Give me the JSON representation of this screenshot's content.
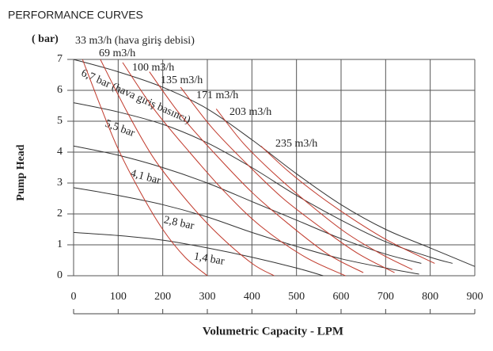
{
  "chart_data": {
    "type": "line",
    "title": "PERFORMANCE CURVES",
    "y_unit": "( bar)",
    "y_label": "Pump Head",
    "x_label": "Volumetric Capacity - LPM",
    "xlim": [
      0,
      900
    ],
    "xticks": [
      0,
      100,
      200,
      300,
      400,
      500,
      600,
      700,
      800,
      900
    ],
    "ylim": [
      0,
      7
    ],
    "yticks": [
      0,
      1,
      2,
      3,
      4,
      5,
      6,
      7
    ],
    "grid": true,
    "series": [
      {
        "name": "6,7 bar (hava giriş basıncı)",
        "color": "#333333",
        "x": [
          0,
          100,
          200,
          300,
          400,
          500,
          600,
          700,
          800,
          900
        ],
        "values": [
          7,
          6.6,
          6.1,
          5.4,
          4.4,
          3.3,
          2.3,
          1.5,
          0.9,
          0.3
        ]
      },
      {
        "name": "5,5 bar",
        "color": "#333333",
        "x": [
          0,
          100,
          200,
          300,
          400,
          500,
          600,
          700,
          800,
          850
        ],
        "values": [
          5.6,
          5.3,
          4.9,
          4.3,
          3.5,
          2.6,
          1.8,
          1.1,
          0.6,
          0.4
        ]
      },
      {
        "name": "4,1 bar",
        "color": "#333333",
        "x": [
          0,
          100,
          200,
          300,
          400,
          500,
          600,
          700,
          780
        ],
        "values": [
          4.2,
          3.9,
          3.5,
          3.0,
          2.4,
          1.8,
          1.2,
          0.7,
          0.4
        ]
      },
      {
        "name": "2,8 bar",
        "color": "#333333",
        "x": [
          0,
          100,
          200,
          300,
          400,
          500,
          600,
          700,
          775
        ],
        "values": [
          2.85,
          2.6,
          2.3,
          1.9,
          1.4,
          0.95,
          0.55,
          0.25,
          0.05
        ]
      },
      {
        "name": "1,4 bar",
        "color": "#333333",
        "x": [
          0,
          100,
          200,
          300,
          400,
          500,
          560
        ],
        "values": [
          1.4,
          1.3,
          1.15,
          0.9,
          0.6,
          0.25,
          0
        ]
      },
      {
        "name": "33 m3/h (hava giriş debisi)",
        "color": "#c0392b",
        "x": [
          20,
          60,
          100,
          150,
          200,
          250,
          300
        ],
        "values": [
          7,
          5.5,
          4.1,
          2.7,
          1.5,
          0.6,
          0
        ]
      },
      {
        "name": "69 m3/h",
        "color": "#c0392b",
        "x": [
          60,
          120,
          180,
          250,
          320,
          400,
          450
        ],
        "values": [
          7,
          5.3,
          3.8,
          2.5,
          1.4,
          0.4,
          0
        ]
      },
      {
        "name": "100 m3/h",
        "color": "#c0392b",
        "x": [
          110,
          180,
          260,
          340,
          420,
          520,
          610
        ],
        "values": [
          6.9,
          5.4,
          4.0,
          2.7,
          1.6,
          0.6,
          0
        ]
      },
      {
        "name": "135 m3/h",
        "color": "#c0392b",
        "x": [
          170,
          240,
          320,
          400,
          480,
          570,
          650
        ],
        "values": [
          6.6,
          5.2,
          3.9,
          2.7,
          1.7,
          0.7,
          0.1
        ]
      },
      {
        "name": "171 m3/h",
        "color": "#c0392b",
        "x": [
          240,
          310,
          390,
          470,
          560,
          640,
          720
        ],
        "values": [
          6.1,
          4.8,
          3.6,
          2.5,
          1.5,
          0.7,
          0.1
        ]
      },
      {
        "name": "203 m3/h",
        "color": "#c0392b",
        "x": [
          320,
          380,
          450,
          530,
          610,
          690,
          760
        ],
        "values": [
          5.4,
          4.3,
          3.3,
          2.3,
          1.4,
          0.7,
          0.2
        ]
      },
      {
        "name": "235 m3/h",
        "color": "#c0392b",
        "x": [
          420,
          480,
          550,
          630,
          710,
          810
        ],
        "values": [
          4.2,
          3.4,
          2.6,
          1.8,
          1.1,
          0.4
        ]
      }
    ]
  }
}
